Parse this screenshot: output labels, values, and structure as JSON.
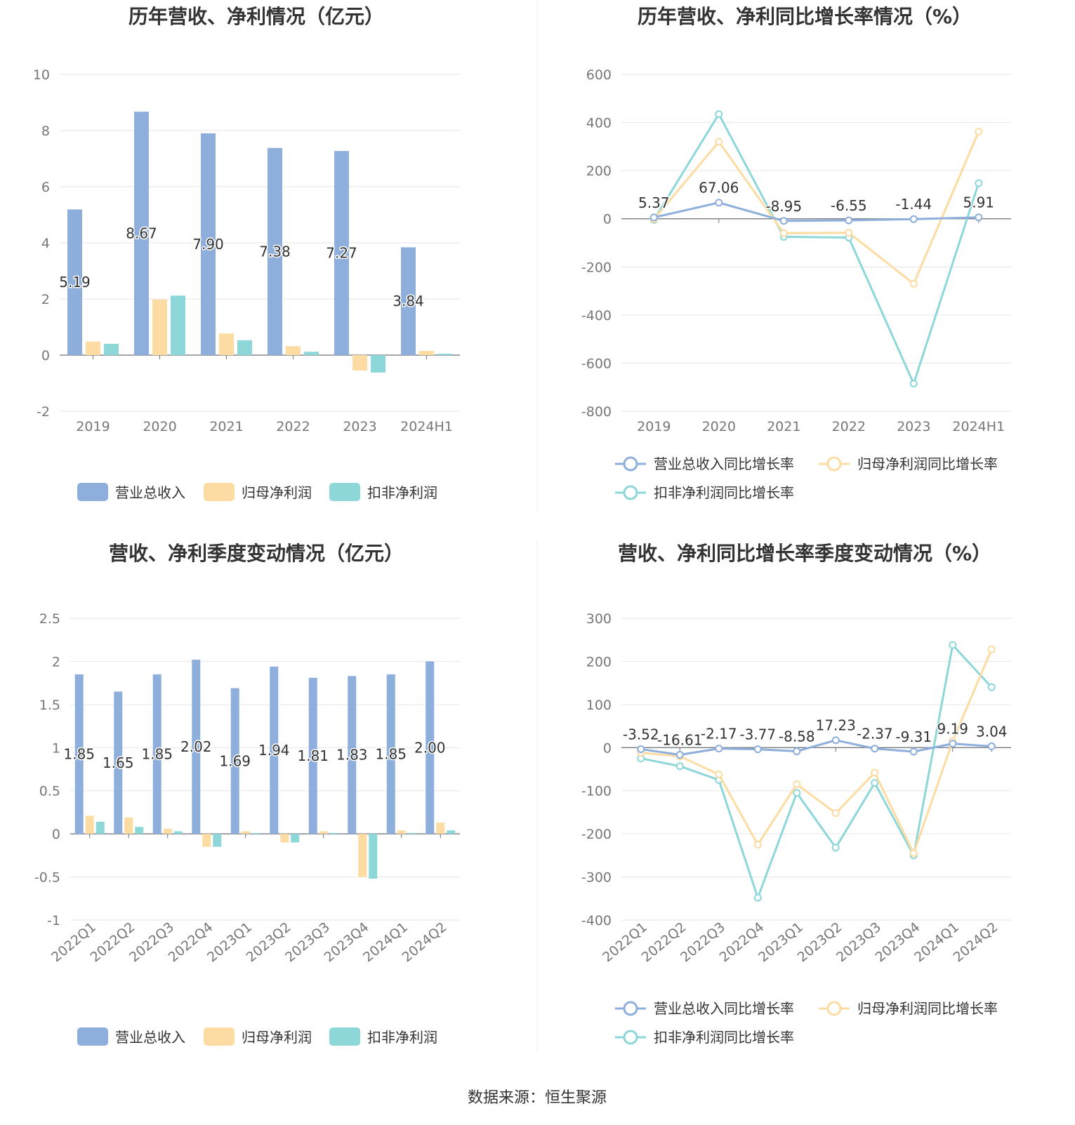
{
  "source": "数据来源：恒生聚源",
  "colors": {
    "revenue": "#8eaedc",
    "net_profit": "#fddca4",
    "deducted_profit": "#8ed7d9"
  },
  "chart_data": [
    {
      "type": "bar",
      "title": "历年营收、净利情况（亿元）",
      "categories": [
        "2019",
        "2020",
        "2021",
        "2022",
        "2023",
        "2024H1"
      ],
      "ylim": [
        -2,
        10
      ],
      "yticks": [
        "-2",
        "0",
        "2",
        "4",
        "6",
        "8",
        "10"
      ],
      "grid": true,
      "legend_position": "bottom",
      "series": [
        {
          "name": "营业总收入",
          "values": [
            5.19,
            8.67,
            7.9,
            7.38,
            7.27,
            3.84
          ],
          "labels": [
            "5.19",
            "8.67",
            "7.90",
            "7.38",
            "7.27",
            "3.84"
          ]
        },
        {
          "name": "归母净利润",
          "values": [
            0.48,
            1.98,
            0.77,
            0.32,
            -0.55,
            0.15
          ]
        },
        {
          "name": "扣非净利润",
          "values": [
            0.4,
            2.12,
            0.53,
            0.12,
            -0.62,
            0.05
          ]
        }
      ]
    },
    {
      "type": "line",
      "title": "历年营收、净利同比增长率情况（%）",
      "categories": [
        "2019",
        "2020",
        "2021",
        "2022",
        "2023",
        "2024H1"
      ],
      "ylim": [
        -800,
        600
      ],
      "yticks": [
        "-800",
        "-600",
        "-400",
        "-200",
        "0",
        "200",
        "400",
        "600"
      ],
      "grid": true,
      "legend_position": "bottom",
      "series": [
        {
          "name": "营业总收入同比增长率",
          "values": [
            5.37,
            67.06,
            -8.95,
            -6.55,
            -1.44,
            5.91
          ],
          "labels": [
            "5.37",
            "67.06",
            "-8.95",
            "-6.55",
            "-1.44",
            "5.91"
          ]
        },
        {
          "name": "归母净利润同比增长率",
          "values": [
            -2,
            320,
            -60,
            -58,
            -270,
            362
          ]
        },
        {
          "name": "扣非净利润同比增长率",
          "values": [
            -5,
            435,
            -75,
            -78,
            -685,
            148
          ]
        }
      ]
    },
    {
      "type": "bar",
      "title": "营收、净利季度变动情况（亿元）",
      "categories": [
        "2022Q1",
        "2022Q2",
        "2022Q3",
        "2022Q4",
        "2023Q1",
        "2023Q2",
        "2023Q3",
        "2023Q4",
        "2024Q1",
        "2024Q2"
      ],
      "ylim": [
        -1,
        2.5
      ],
      "yticks": [
        "-1",
        "-0.5",
        "0",
        "0.5",
        "1",
        "1.5",
        "2",
        "2.5"
      ],
      "grid": true,
      "legend_position": "bottom",
      "series": [
        {
          "name": "营业总收入",
          "values": [
            1.85,
            1.65,
            1.85,
            2.02,
            1.69,
            1.94,
            1.81,
            1.83,
            1.85,
            2.0
          ],
          "labels": [
            "1.85",
            "1.65",
            "1.85",
            "2.02",
            "1.69",
            "1.94",
            "1.81",
            "1.83",
            "1.85",
            "2.00"
          ]
        },
        {
          "name": "归母净利润",
          "values": [
            0.21,
            0.19,
            0.06,
            -0.15,
            0.03,
            -0.1,
            0.03,
            -0.5,
            0.04,
            0.13
          ]
        },
        {
          "name": "扣非净利润",
          "values": [
            0.14,
            0.08,
            0.03,
            -0.15,
            0.01,
            -0.1,
            0.01,
            -0.52,
            0.01,
            0.04
          ]
        }
      ]
    },
    {
      "type": "line",
      "title": "营收、净利同比增长率季度变动情况（%）",
      "categories": [
        "2022Q1",
        "2022Q2",
        "2022Q3",
        "2022Q4",
        "2023Q1",
        "2023Q2",
        "2023Q3",
        "2023Q4",
        "2024Q1",
        "2024Q2"
      ],
      "ylim": [
        -400,
        300
      ],
      "yticks": [
        "-400",
        "-300",
        "-200",
        "-100",
        "0",
        "100",
        "200",
        "300"
      ],
      "grid": true,
      "legend_position": "bottom",
      "series": [
        {
          "name": "营业总收入同比增长率",
          "values": [
            -3.52,
            -16.61,
            -2.17,
            -3.77,
            -8.58,
            17.23,
            -2.37,
            -9.31,
            9.19,
            3.04
          ],
          "labels": [
            "-3.52",
            "-16.61",
            "-2.17",
            "-3.77",
            "-8.58",
            "17.23",
            "-2.37",
            "-9.31",
            "9.19",
            "3.04"
          ]
        },
        {
          "name": "归母净利润同比增长率",
          "values": [
            -12,
            -20,
            -62,
            -225,
            -85,
            -152,
            -58,
            -245,
            15,
            228
          ]
        },
        {
          "name": "扣非净利润同比增长率",
          "values": [
            -25,
            -43,
            -75,
            -348,
            -105,
            -232,
            -82,
            -250,
            238,
            140
          ]
        }
      ]
    }
  ]
}
